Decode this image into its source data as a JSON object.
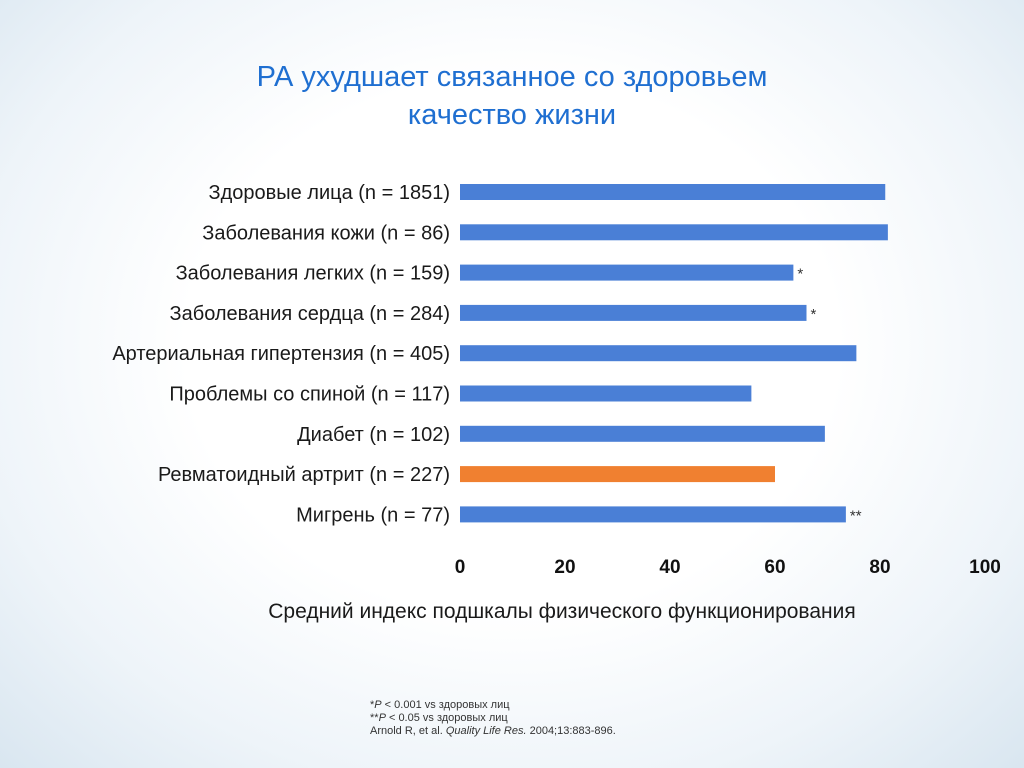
{
  "slide": {
    "title_line1": "РА ухудшает связанное со здоровьем",
    "title_line2": "качество жизни"
  },
  "chart_data": {
    "type": "bar",
    "orientation": "horizontal",
    "categories": [
      "Здоровые лица (n = 1851)",
      "Заболевания кожи (n = 86)",
      "Заболевания легких (n = 159)",
      "Заболевания сердца (n = 284)",
      "Артериальная гипертензия (n = 405)",
      "Проблемы со спиной (n = 117)",
      "Диабет (n = 102)",
      "Ревматоидный артрит (n = 227)",
      "Мигрень (n = 77)"
    ],
    "values": [
      81,
      81.5,
      63.5,
      66,
      75.5,
      55.5,
      69.5,
      60,
      73.5
    ],
    "annotations": [
      "",
      "",
      "*",
      "*",
      "",
      "",
      "",
      "",
      "**"
    ],
    "bar_colors": [
      "#4a7fd6",
      "#4a7fd6",
      "#4a7fd6",
      "#4a7fd6",
      "#4a7fd6",
      "#4a7fd6",
      "#4a7fd6",
      "#f08030",
      "#4a7fd6"
    ],
    "xlabel": "Средний индекс подшкалы физического функционирования",
    "xlim": [
      0,
      100
    ],
    "xticks": [
      0,
      20,
      40,
      60,
      80,
      100
    ],
    "grid": false
  },
  "footnotes": {
    "line1_italic": "P",
    "line1": " < 0.001 vs здоровых лиц",
    "line1_prefix": "*",
    "line2_prefix": "**",
    "line2_italic": "P",
    "line2": " < 0.05 vs здоровых лиц",
    "line3_a": "Arnold R, et al. ",
    "line3_italic": "Quality Life Res.",
    "line3_b": " 2004;13:883-896."
  }
}
